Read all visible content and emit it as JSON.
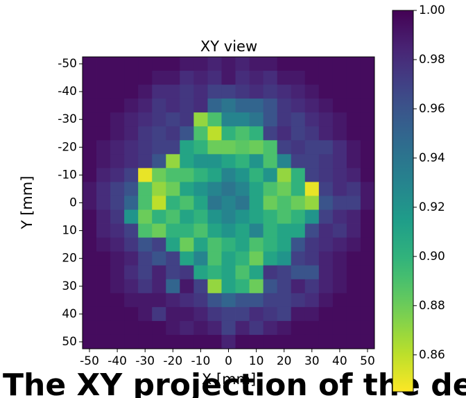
{
  "chart_data": {
    "type": "heatmap",
    "title": "XY view",
    "x_label": "X [mm]",
    "y_label": "Y [mm]",
    "caption": "The XY projection of the dete",
    "colormap": "viridis_r",
    "x": [
      -50,
      -45,
      -40,
      -35,
      -30,
      -25,
      -20,
      -15,
      -10,
      -5,
      0,
      5,
      10,
      15,
      20,
      25,
      30,
      35,
      40,
      45,
      50
    ],
    "y": [
      -50,
      -45,
      -40,
      -35,
      -30,
      -25,
      -20,
      -15,
      -10,
      -5,
      0,
      5,
      10,
      15,
      20,
      25,
      30,
      35,
      40,
      45,
      50
    ],
    "z": [
      [
        0.995,
        0.995,
        0.995,
        0.995,
        0.995,
        0.995,
        0.995,
        0.99,
        0.99,
        0.985,
        0.99,
        0.985,
        0.99,
        0.99,
        0.995,
        0.995,
        0.995,
        0.995,
        0.995,
        0.995,
        0.995
      ],
      [
        0.995,
        0.995,
        0.995,
        0.995,
        0.995,
        0.99,
        0.99,
        0.98,
        0.985,
        0.98,
        0.99,
        0.98,
        0.985,
        0.98,
        0.99,
        0.99,
        0.995,
        0.995,
        0.995,
        0.995,
        0.995
      ],
      [
        0.995,
        0.995,
        0.995,
        0.995,
        0.99,
        0.98,
        0.98,
        0.975,
        0.98,
        0.97,
        0.97,
        0.975,
        0.98,
        0.975,
        0.98,
        0.985,
        0.99,
        0.995,
        0.995,
        0.995,
        0.995
      ],
      [
        0.995,
        0.995,
        0.995,
        0.99,
        0.985,
        0.975,
        0.98,
        0.975,
        0.98,
        0.95,
        0.94,
        0.95,
        0.95,
        0.96,
        0.975,
        0.98,
        0.985,
        0.99,
        0.995,
        0.995,
        0.995
      ],
      [
        0.995,
        0.995,
        0.99,
        0.985,
        0.98,
        0.975,
        0.97,
        0.975,
        0.87,
        0.89,
        0.93,
        0.93,
        0.94,
        0.96,
        0.975,
        0.97,
        0.98,
        0.985,
        0.99,
        0.995,
        0.995
      ],
      [
        0.995,
        0.995,
        0.99,
        0.985,
        0.975,
        0.97,
        0.975,
        0.96,
        0.89,
        0.86,
        0.9,
        0.89,
        0.9,
        0.97,
        0.98,
        0.97,
        0.975,
        0.985,
        0.99,
        0.995,
        0.995
      ],
      [
        0.995,
        0.99,
        0.985,
        0.98,
        0.975,
        0.97,
        0.97,
        0.91,
        0.9,
        0.88,
        0.88,
        0.885,
        0.88,
        0.89,
        0.97,
        0.975,
        0.97,
        0.97,
        0.98,
        0.99,
        0.995
      ],
      [
        0.995,
        0.99,
        0.985,
        0.98,
        0.975,
        0.96,
        0.87,
        0.91,
        0.92,
        0.92,
        0.91,
        0.9,
        0.92,
        0.89,
        0.93,
        0.97,
        0.97,
        0.975,
        0.98,
        0.99,
        0.995
      ],
      [
        0.995,
        0.985,
        0.98,
        0.97,
        0.85,
        0.88,
        0.89,
        0.89,
        0.9,
        0.91,
        0.93,
        0.92,
        0.9,
        0.92,
        0.87,
        0.9,
        0.97,
        0.975,
        0.98,
        0.985,
        0.995
      ],
      [
        0.99,
        0.98,
        0.97,
        0.96,
        0.89,
        0.87,
        0.88,
        0.91,
        0.92,
        0.93,
        0.94,
        0.93,
        0.91,
        0.89,
        0.88,
        0.9,
        0.85,
        0.97,
        0.98,
        0.975,
        0.99
      ],
      [
        0.99,
        0.98,
        0.97,
        0.95,
        0.89,
        0.86,
        0.9,
        0.89,
        0.91,
        0.94,
        0.93,
        0.94,
        0.91,
        0.88,
        0.89,
        0.88,
        0.87,
        0.96,
        0.97,
        0.97,
        0.99
      ],
      [
        0.995,
        0.985,
        0.975,
        0.92,
        0.88,
        0.9,
        0.89,
        0.91,
        0.9,
        0.92,
        0.93,
        0.92,
        0.91,
        0.9,
        0.89,
        0.9,
        0.92,
        0.97,
        0.98,
        0.985,
        0.995
      ],
      [
        0.995,
        0.985,
        0.98,
        0.97,
        0.89,
        0.88,
        0.9,
        0.9,
        0.89,
        0.91,
        0.92,
        0.91,
        0.93,
        0.9,
        0.91,
        0.91,
        0.965,
        0.98,
        0.975,
        0.985,
        0.995
      ],
      [
        0.995,
        0.99,
        0.985,
        0.975,
        0.96,
        0.97,
        0.91,
        0.88,
        0.91,
        0.89,
        0.9,
        0.91,
        0.89,
        0.9,
        0.91,
        0.96,
        0.975,
        0.98,
        0.985,
        0.99,
        0.995
      ],
      [
        0.995,
        0.995,
        0.99,
        0.985,
        0.97,
        0.96,
        0.97,
        0.91,
        0.93,
        0.89,
        0.91,
        0.9,
        0.88,
        0.91,
        0.92,
        0.97,
        0.975,
        0.985,
        0.99,
        0.995,
        0.995
      ],
      [
        0.995,
        0.995,
        0.99,
        0.98,
        0.97,
        0.985,
        0.97,
        0.975,
        0.91,
        0.9,
        0.91,
        0.89,
        0.91,
        0.975,
        0.97,
        0.96,
        0.96,
        0.985,
        0.99,
        0.995,
        0.995
      ],
      [
        0.995,
        0.995,
        0.99,
        0.985,
        0.975,
        0.985,
        0.95,
        0.99,
        0.97,
        0.87,
        0.91,
        0.9,
        0.88,
        0.96,
        0.97,
        0.985,
        0.975,
        0.985,
        0.99,
        0.995,
        0.995
      ],
      [
        0.995,
        0.995,
        0.995,
        0.99,
        0.99,
        0.99,
        0.985,
        0.98,
        0.975,
        0.96,
        0.95,
        0.96,
        0.96,
        0.97,
        0.97,
        0.975,
        0.98,
        0.99,
        0.995,
        0.995,
        0.995
      ],
      [
        0.995,
        0.995,
        0.995,
        0.995,
        0.99,
        0.975,
        0.99,
        0.99,
        0.985,
        0.975,
        0.97,
        0.97,
        0.98,
        0.975,
        0.97,
        0.99,
        0.99,
        0.995,
        0.995,
        0.995,
        0.995
      ],
      [
        0.995,
        0.995,
        0.995,
        0.995,
        0.995,
        0.995,
        0.99,
        0.985,
        0.99,
        0.985,
        0.97,
        0.985,
        0.975,
        0.985,
        0.99,
        0.995,
        0.995,
        0.995,
        0.995,
        0.995,
        0.995
      ],
      [
        0.995,
        0.995,
        0.995,
        0.995,
        0.995,
        0.995,
        0.995,
        0.995,
        0.995,
        0.995,
        0.985,
        0.995,
        0.995,
        0.995,
        0.995,
        0.995,
        0.995,
        0.995,
        0.995,
        0.995,
        0.995
      ]
    ],
    "xlim": [
      -52.5,
      52.5
    ],
    "ylim": [
      52.5,
      -52.5
    ],
    "xticks": [
      -50,
      -40,
      -30,
      -20,
      -10,
      0,
      10,
      20,
      30,
      40,
      50
    ],
    "yticks": [
      -50,
      -40,
      -30,
      -20,
      -10,
      0,
      10,
      20,
      30,
      40,
      50
    ],
    "clim": [
      0.845,
      1.0
    ],
    "cticks": [
      {
        "value": 0.86,
        "label": "0.86"
      },
      {
        "value": 0.88,
        "label": "0.88"
      },
      {
        "value": 0.9,
        "label": "0.90"
      },
      {
        "value": 0.92,
        "label": "0.92"
      },
      {
        "value": 0.94,
        "label": "0.94"
      },
      {
        "value": 0.96,
        "label": "0.96"
      },
      {
        "value": 0.98,
        "label": "0.98"
      },
      {
        "value": 1.0,
        "label": "1.00"
      }
    ]
  }
}
